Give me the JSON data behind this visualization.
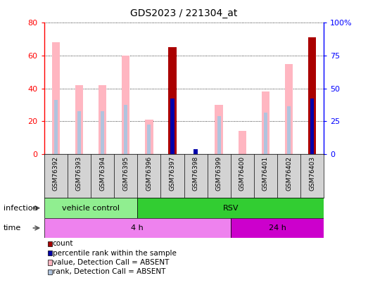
{
  "title": "GDS2023 / 221304_at",
  "samples": [
    "GSM76392",
    "GSM76393",
    "GSM76394",
    "GSM76395",
    "GSM76396",
    "GSM76397",
    "GSM76398",
    "GSM76399",
    "GSM76400",
    "GSM76401",
    "GSM76402",
    "GSM76403"
  ],
  "ylim_left": [
    0,
    80
  ],
  "ylim_right": [
    0,
    100
  ],
  "yticks_left": [
    0,
    20,
    40,
    60,
    80
  ],
  "yticks_right": [
    0,
    25,
    50,
    75,
    100
  ],
  "ytick_labels_right": [
    "0",
    "25",
    "50",
    "75",
    "100%"
  ],
  "value_absent": [
    68,
    42,
    42,
    60,
    21,
    null,
    null,
    30,
    14,
    38,
    55,
    null
  ],
  "rank_absent": [
    33,
    26,
    26,
    30,
    18,
    null,
    null,
    23,
    null,
    25,
    29,
    null
  ],
  "count_val": [
    null,
    null,
    null,
    null,
    null,
    65,
    null,
    null,
    null,
    null,
    null,
    71
  ],
  "count_rank": [
    null,
    null,
    null,
    null,
    null,
    34,
    3,
    null,
    null,
    null,
    null,
    34
  ],
  "infection_groups": [
    {
      "label": "vehicle control",
      "start": 0,
      "end": 4,
      "color": "#90ee90"
    },
    {
      "label": "RSV",
      "start": 4,
      "end": 12,
      "color": "#32cd32"
    }
  ],
  "time_groups": [
    {
      "label": "4 h",
      "start": 0,
      "end": 8,
      "color": "#ee82ee"
    },
    {
      "label": "24 h",
      "start": 8,
      "end": 12,
      "color": "#cc00cc"
    }
  ],
  "color_count": "#aa0000",
  "color_rank": "#0000aa",
  "color_value_absent": "#ffb6c1",
  "color_rank_absent": "#b0c4de",
  "legend_items": [
    {
      "label": "count",
      "color": "#aa0000"
    },
    {
      "label": "percentile rank within the sample",
      "color": "#0000aa"
    },
    {
      "label": "value, Detection Call = ABSENT",
      "color": "#ffb6c1"
    },
    {
      "label": "rank, Detection Call = ABSENT",
      "color": "#b0c4de"
    }
  ],
  "bar_width": 0.35,
  "infection_label": "infection",
  "time_label": "time",
  "bg_color": "#d3d3d3"
}
